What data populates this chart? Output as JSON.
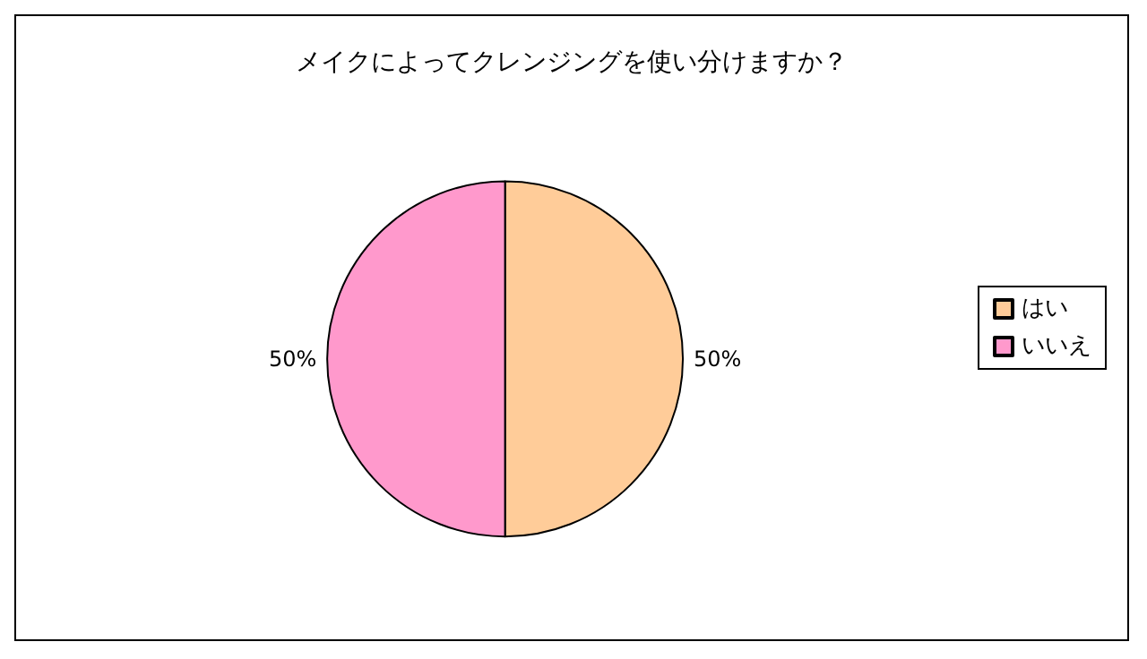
{
  "chart_data": {
    "type": "pie",
    "title": "メイクによってクレンジングを使い分けますか？",
    "categories": [
      "はい",
      "いいえ"
    ],
    "values": [
      50,
      50
    ],
    "colors": [
      "#ffcc99",
      "#ff99cc"
    ],
    "value_labels": [
      "50%",
      "50%"
    ],
    "legend": "right"
  }
}
